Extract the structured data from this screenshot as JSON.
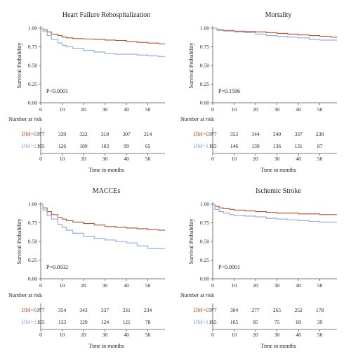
{
  "colors": {
    "dm0": "#b5512a",
    "dm1": "#8aa9e0",
    "axis": "#555555"
  },
  "chart_data": [
    {
      "type": "line",
      "title": "Heart Failure Rehospitalization",
      "ylabel": "Survival Probability",
      "xlabel": "Time in months",
      "xlim": [
        0,
        58
      ],
      "ylim": [
        0,
        1
      ],
      "xticks": [
        "0",
        "10",
        "20",
        "30",
        "40",
        "50"
      ],
      "yticks": [
        "0.00",
        "0.25",
        "0.50",
        "0.75",
        "1.00"
      ],
      "annotation": "P<0.0001",
      "series": [
        {
          "name": "DM=0",
          "x": [
            0,
            1,
            3,
            5,
            8,
            10,
            12,
            15,
            20,
            25,
            30,
            35,
            40,
            45,
            50,
            55,
            58
          ],
          "y": [
            1.0,
            0.98,
            0.95,
            0.92,
            0.9,
            0.88,
            0.87,
            0.86,
            0.855,
            0.85,
            0.84,
            0.835,
            0.82,
            0.81,
            0.8,
            0.79,
            0.79
          ]
        },
        {
          "name": "DM=1",
          "x": [
            0,
            1,
            3,
            5,
            8,
            10,
            12,
            15,
            20,
            25,
            30,
            35,
            40,
            45,
            50,
            55,
            58
          ],
          "y": [
            1.0,
            0.96,
            0.9,
            0.85,
            0.8,
            0.77,
            0.75,
            0.73,
            0.7,
            0.68,
            0.66,
            0.65,
            0.65,
            0.64,
            0.63,
            0.62,
            0.62
          ]
        }
      ],
      "risk_table": {
        "heading": "Number at risk",
        "rows": [
          {
            "label": "DM=0",
            "values": [
              "377",
              "339",
              "322",
              "318",
              "307",
              "214"
            ]
          },
          {
            "label": "DM=1",
            "values": [
              "155",
              "126",
              "109",
              "103",
              "99",
              "65"
            ]
          }
        ],
        "xticks": [
          "0",
          "10",
          "20",
          "30",
          "40",
          "50"
        ],
        "xlabel": "Time in months"
      }
    },
    {
      "type": "line",
      "title": "Mortality",
      "ylabel": "Survival Probability",
      "xlabel": "Time in months",
      "xlim": [
        0,
        58
      ],
      "ylim": [
        0,
        1
      ],
      "xticks": [
        "0",
        "10",
        "20",
        "30",
        "40",
        "50"
      ],
      "yticks": [
        "0.00",
        "0.25",
        "0.50",
        "0.75",
        "1.00"
      ],
      "annotation": "P=0.1596",
      "series": [
        {
          "name": "DM=0",
          "x": [
            0,
            2,
            5,
            10,
            15,
            20,
            25,
            30,
            35,
            40,
            45,
            50,
            55,
            58
          ],
          "y": [
            1.0,
            0.98,
            0.97,
            0.96,
            0.955,
            0.95,
            0.94,
            0.93,
            0.92,
            0.91,
            0.9,
            0.89,
            0.88,
            0.88
          ]
        },
        {
          "name": "DM=1",
          "x": [
            0,
            2,
            5,
            10,
            15,
            20,
            25,
            30,
            35,
            40,
            45,
            50,
            55,
            58
          ],
          "y": [
            1.0,
            0.97,
            0.96,
            0.95,
            0.94,
            0.92,
            0.9,
            0.89,
            0.88,
            0.87,
            0.85,
            0.84,
            0.84,
            0.84
          ]
        }
      ],
      "risk_table": {
        "heading": "Number at risk",
        "rows": [
          {
            "label": "DM=0",
            "values": [
              "377",
              "353",
              "344",
              "340",
              "337",
              "238"
            ]
          },
          {
            "label": "DM=1",
            "values": [
              "155",
              "146",
              "139",
              "136",
              "131",
              "87"
            ]
          }
        ],
        "xticks": [
          "0",
          "10",
          "20",
          "30",
          "40",
          "50"
        ],
        "xlabel": "Time in months"
      }
    },
    {
      "type": "line",
      "title": "MACCEs",
      "ylabel": "Survival Probability",
      "xlabel": "Time in months",
      "xlim": [
        0,
        58
      ],
      "ylim": [
        0,
        1
      ],
      "xticks": [
        "0",
        "10",
        "20",
        "30",
        "40",
        "50"
      ],
      "yticks": [
        "0.00",
        "0.25",
        "0.50",
        "0.75",
        "1.00"
      ],
      "annotation": "P=0.0032",
      "series": [
        {
          "name": "DM=0",
          "x": [
            0,
            1,
            3,
            5,
            8,
            10,
            12,
            15,
            20,
            25,
            30,
            35,
            40,
            45,
            50,
            55,
            58
          ],
          "y": [
            1.0,
            0.95,
            0.9,
            0.86,
            0.82,
            0.8,
            0.78,
            0.76,
            0.74,
            0.72,
            0.7,
            0.69,
            0.68,
            0.67,
            0.66,
            0.65,
            0.65
          ]
        },
        {
          "name": "DM=1",
          "x": [
            0,
            1,
            3,
            5,
            8,
            10,
            12,
            15,
            20,
            25,
            30,
            35,
            40,
            45,
            50,
            55,
            58
          ],
          "y": [
            1.0,
            0.92,
            0.85,
            0.8,
            0.73,
            0.69,
            0.65,
            0.61,
            0.57,
            0.54,
            0.52,
            0.5,
            0.48,
            0.44,
            0.41,
            0.41,
            0.41
          ]
        }
      ],
      "risk_table": {
        "heading": "Number at risk",
        "rows": [
          {
            "label": "DM=0",
            "values": [
              "377",
              "354",
              "343",
              "337",
              "331",
              "234"
            ]
          },
          {
            "label": "DM=1",
            "values": [
              "155",
              "133",
              "129",
              "124",
              "121",
              "78"
            ]
          }
        ],
        "xticks": [
          "0",
          "10",
          "20",
          "30",
          "40",
          "50"
        ],
        "xlabel": "Time in months"
      }
    },
    {
      "type": "line",
      "title": "Ischemic Stroke",
      "ylabel": "Survival Probability",
      "xlabel": "Time in months",
      "xlim": [
        0,
        58
      ],
      "ylim": [
        0,
        1
      ],
      "xticks": [
        "0",
        "10",
        "20",
        "30",
        "40",
        "50"
      ],
      "yticks": [
        "0.00",
        "0.25",
        "0.50",
        "0.75",
        "1.00"
      ],
      "annotation": "P<0.0001",
      "series": [
        {
          "name": "DM=0",
          "x": [
            0,
            1,
            3,
            5,
            8,
            10,
            15,
            20,
            25,
            30,
            35,
            40,
            45,
            50,
            55,
            58
          ],
          "y": [
            1.0,
            0.97,
            0.95,
            0.94,
            0.93,
            0.92,
            0.91,
            0.9,
            0.89,
            0.88,
            0.88,
            0.87,
            0.87,
            0.86,
            0.86,
            0.86
          ]
        },
        {
          "name": "DM=1",
          "x": [
            0,
            1,
            3,
            5,
            8,
            10,
            15,
            20,
            25,
            30,
            35,
            40,
            45,
            50,
            55,
            58
          ],
          "y": [
            1.0,
            0.93,
            0.9,
            0.88,
            0.86,
            0.85,
            0.84,
            0.83,
            0.81,
            0.8,
            0.79,
            0.78,
            0.77,
            0.76,
            0.76,
            0.76
          ]
        }
      ],
      "risk_table": {
        "heading": "Number at risk",
        "rows": [
          {
            "label": "DM=0",
            "values": [
              "377",
              "304",
              "277",
              "265",
              "252",
              "178"
            ]
          },
          {
            "label": "DM=1",
            "values": [
              "155",
              "105",
              "85",
              "75",
              "69",
              "39"
            ]
          }
        ],
        "xticks": [
          "0",
          "10",
          "20",
          "30",
          "40",
          "50"
        ],
        "xlabel": "Time in months"
      }
    }
  ]
}
